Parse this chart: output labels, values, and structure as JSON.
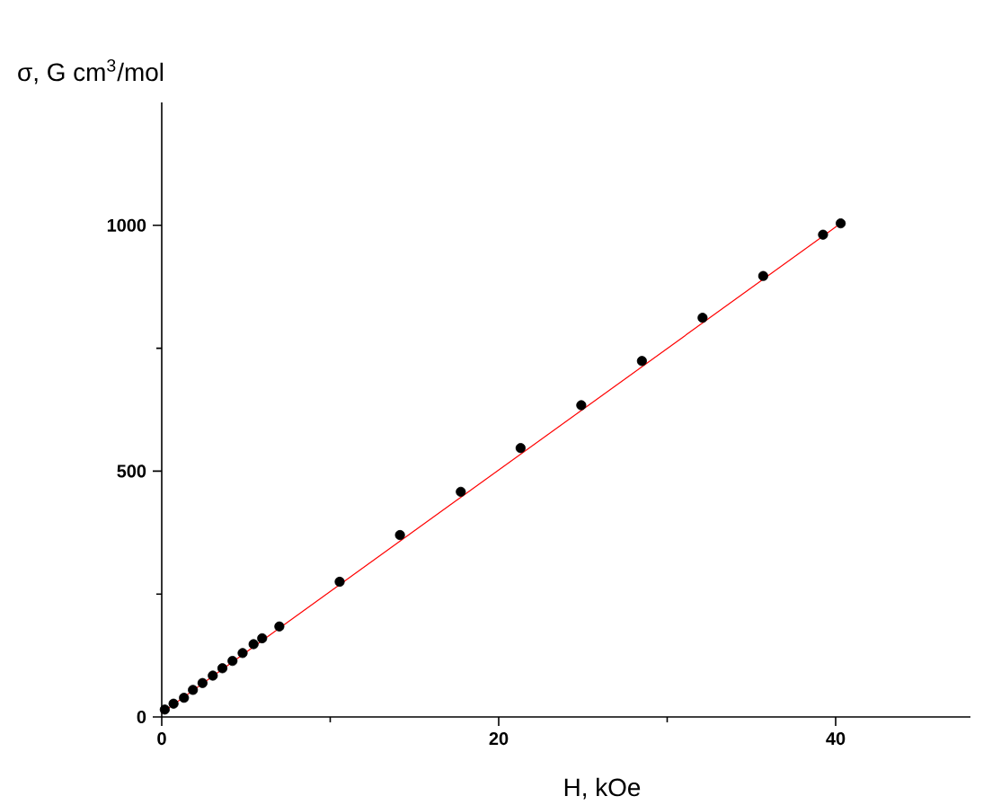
{
  "chart_data": {
    "type": "scatter",
    "xlabel": "H, kOe",
    "ylabel": "σ, G cm$^{3}$/mol",
    "xlim": [
      0,
      48
    ],
    "ylim": [
      0,
      1250
    ],
    "xticks": [
      0,
      {
        "value": 10,
        "label": null
      },
      20,
      {
        "value": 30,
        "label": null
      },
      40
    ],
    "yticks": [
      0,
      {
        "value": 250,
        "label": null
      },
      500,
      {
        "value": 750,
        "label": null
      },
      1000
    ],
    "marker": "circle",
    "series": [
      {
        "color": "#000000",
        "x": [
          0.18,
          0.7,
          1.32,
          1.85,
          2.42,
          3.03,
          3.6,
          4.2,
          4.8,
          5.45,
          5.96,
          6.98,
          10.56,
          14.14,
          17.75,
          21.3,
          24.9,
          28.5,
          32.1,
          35.7,
          39.25,
          40.3
        ],
        "values": [
          15,
          27,
          39,
          55,
          69,
          84,
          99,
          114,
          130,
          148,
          160,
          184,
          275,
          370,
          458,
          547,
          634,
          724,
          812,
          897,
          981,
          1004
        ]
      },
      {
        "type": "line",
        "marker": "none",
        "color": "#ff0000",
        "x": [
          0,
          40.3
        ],
        "values": [
          8,
          1004
        ]
      }
    ]
  }
}
